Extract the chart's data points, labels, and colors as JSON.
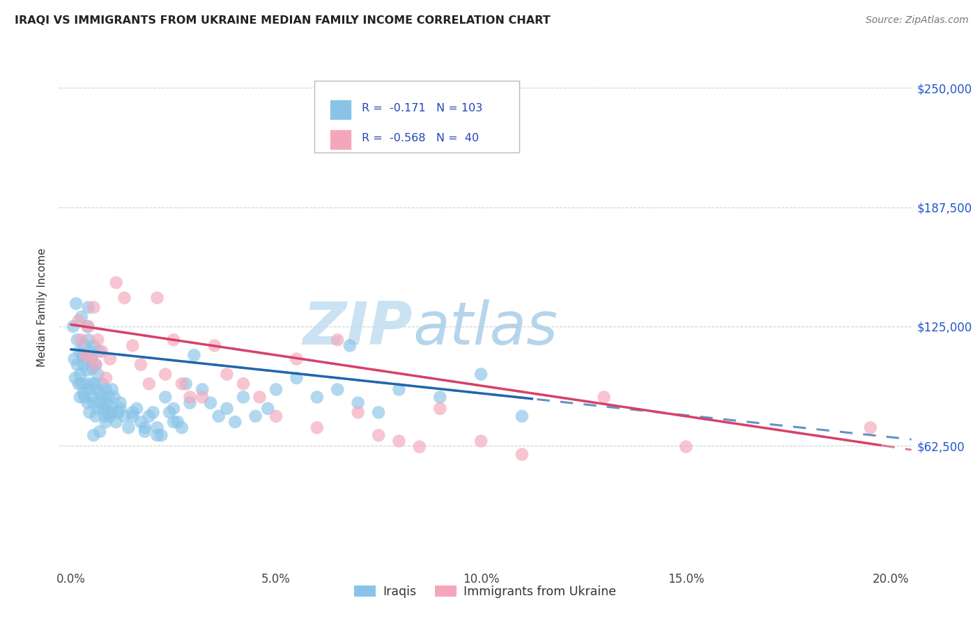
{
  "title": "IRAQI VS IMMIGRANTS FROM UKRAINE MEDIAN FAMILY INCOME CORRELATION CHART",
  "source": "Source: ZipAtlas.com",
  "xlabel_ticks": [
    "0.0%",
    "5.0%",
    "10.0%",
    "15.0%",
    "20.0%"
  ],
  "xlabel_vals": [
    0.0,
    5.0,
    10.0,
    15.0,
    20.0
  ],
  "ylabel": "Median Family Income",
  "yticks": [
    0,
    62500,
    125000,
    187500,
    250000
  ],
  "ytick_labels": [
    "",
    "$62,500",
    "$125,000",
    "$187,500",
    "$250,000"
  ],
  "ylim": [
    20000,
    270000
  ],
  "xlim": [
    -0.3,
    20.5
  ],
  "blue_R": -0.171,
  "blue_N": 103,
  "pink_R": -0.568,
  "pink_N": 40,
  "blue_color": "#89c4e8",
  "pink_color": "#f4a7bb",
  "blue_line_color": "#2166ac",
  "pink_line_color": "#d6426a",
  "ytick_label_color": "#2255cc",
  "watermark": "ZIPatlas",
  "watermark_color_zip": "#c0d8ee",
  "watermark_color_atlas": "#a8cce0",
  "blue_x": [
    0.05,
    0.08,
    0.1,
    0.12,
    0.15,
    0.15,
    0.18,
    0.2,
    0.22,
    0.22,
    0.25,
    0.25,
    0.28,
    0.3,
    0.3,
    0.32,
    0.33,
    0.35,
    0.35,
    0.38,
    0.4,
    0.4,
    0.42,
    0.42,
    0.45,
    0.45,
    0.48,
    0.5,
    0.5,
    0.52,
    0.55,
    0.55,
    0.58,
    0.6,
    0.6,
    0.62,
    0.65,
    0.65,
    0.68,
    0.7,
    0.72,
    0.75,
    0.78,
    0.8,
    0.82,
    0.85,
    0.88,
    0.9,
    0.92,
    0.95,
    0.98,
    1.0,
    1.05,
    1.1,
    1.15,
    1.2,
    1.3,
    1.4,
    1.5,
    1.6,
    1.7,
    1.8,
    1.9,
    2.0,
    2.1,
    2.2,
    2.3,
    2.4,
    2.5,
    2.6,
    2.7,
    2.8,
    2.9,
    3.0,
    3.2,
    3.4,
    3.6,
    3.8,
    4.0,
    4.2,
    4.5,
    4.8,
    5.0,
    5.5,
    6.0,
    6.5,
    7.0,
    7.5,
    8.0,
    9.0,
    10.0,
    11.0,
    0.42,
    0.55,
    0.7,
    0.85,
    1.0,
    1.2,
    1.5,
    1.8,
    2.1,
    2.5,
    6.8
  ],
  "blue_y": [
    125000,
    108000,
    98000,
    137000,
    118000,
    105000,
    95000,
    112000,
    100000,
    88000,
    130000,
    95000,
    110000,
    105000,
    90000,
    115000,
    88000,
    108000,
    95000,
    102000,
    125000,
    85000,
    118000,
    92000,
    112000,
    80000,
    95000,
    108000,
    88000,
    103000,
    115000,
    85000,
    95000,
    105000,
    78000,
    92000,
    100000,
    82000,
    112000,
    90000,
    85000,
    95000,
    88000,
    82000,
    78000,
    92000,
    85000,
    80000,
    88000,
    78000,
    82000,
    92000,
    88000,
    75000,
    80000,
    85000,
    78000,
    72000,
    80000,
    82000,
    75000,
    70000,
    78000,
    80000,
    72000,
    68000,
    88000,
    80000,
    82000,
    75000,
    72000,
    95000,
    85000,
    110000,
    92000,
    85000,
    78000,
    82000,
    75000,
    88000,
    78000,
    82000,
    92000,
    98000,
    88000,
    92000,
    85000,
    80000,
    92000,
    88000,
    100000,
    78000,
    135000,
    68000,
    70000,
    75000,
    80000,
    82000,
    78000,
    72000,
    68000,
    75000,
    115000
  ],
  "pink_x": [
    0.18,
    0.25,
    0.35,
    0.42,
    0.5,
    0.55,
    0.6,
    0.65,
    0.75,
    0.85,
    0.95,
    1.1,
    1.3,
    1.5,
    1.7,
    1.9,
    2.1,
    2.3,
    2.5,
    2.7,
    2.9,
    3.2,
    3.5,
    3.8,
    4.2,
    4.6,
    5.0,
    5.5,
    6.0,
    6.5,
    7.0,
    7.5,
    8.0,
    8.5,
    9.0,
    10.0,
    11.0,
    13.0,
    15.0,
    19.5
  ],
  "pink_y": [
    128000,
    118000,
    110000,
    125000,
    108000,
    135000,
    105000,
    118000,
    112000,
    98000,
    108000,
    148000,
    140000,
    115000,
    105000,
    95000,
    140000,
    100000,
    118000,
    95000,
    88000,
    88000,
    115000,
    100000,
    95000,
    88000,
    78000,
    108000,
    72000,
    118000,
    80000,
    68000,
    65000,
    62000,
    82000,
    65000,
    58000,
    88000,
    62000,
    72000
  ]
}
